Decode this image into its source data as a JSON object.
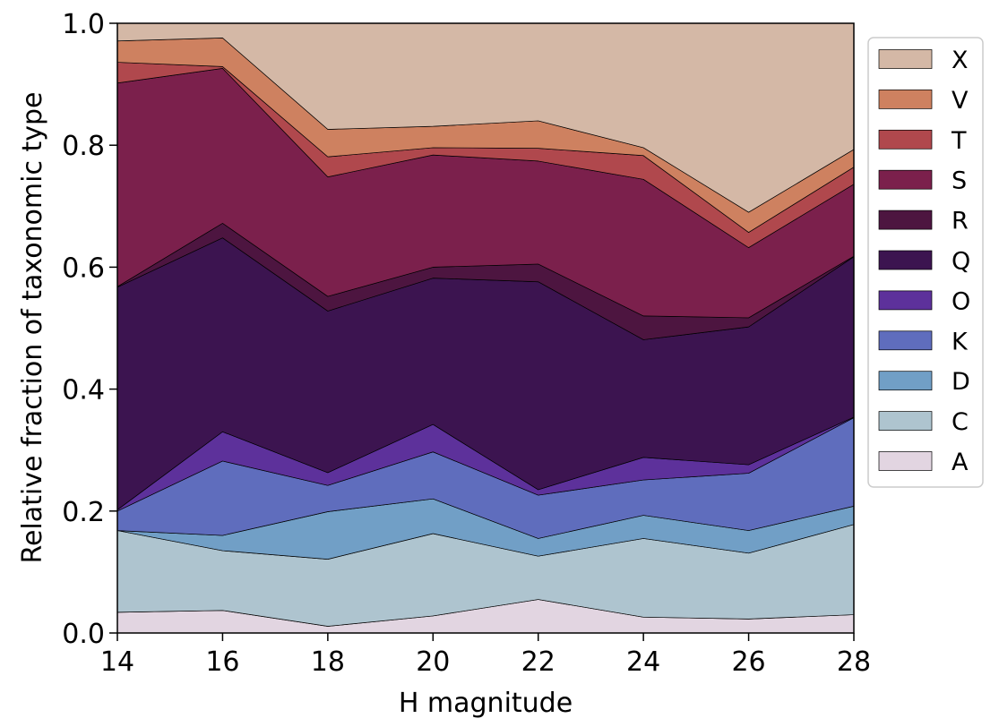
{
  "chart_data": {
    "type": "area",
    "stacked": true,
    "xlabel": "H magnitude",
    "ylabel": "Relative fraction of taxonomic type",
    "xlim": [
      14,
      28
    ],
    "ylim": [
      0,
      1
    ],
    "x": [
      14,
      16,
      18,
      20,
      22,
      24,
      26,
      28
    ],
    "xticks": [
      "14",
      "16",
      "18",
      "20",
      "22",
      "24",
      "26",
      "28"
    ],
    "yticks": [
      "0.0",
      "0.2",
      "0.4",
      "0.6",
      "0.8",
      "1.0"
    ],
    "legend_position": "right",
    "series": [
      {
        "name": "A",
        "color": "#e2d5e1",
        "values": [
          0.034,
          0.037,
          0.011,
          0.028,
          0.055,
          0.026,
          0.023,
          0.03
        ]
      },
      {
        "name": "C",
        "color": "#aec4cf",
        "values": [
          0.134,
          0.098,
          0.11,
          0.135,
          0.071,
          0.129,
          0.108,
          0.148
        ]
      },
      {
        "name": "D",
        "color": "#719fc6",
        "values": [
          0.0,
          0.025,
          0.078,
          0.057,
          0.029,
          0.038,
          0.037,
          0.03
        ]
      },
      {
        "name": "K",
        "color": "#5f6dbd",
        "values": [
          0.032,
          0.122,
          0.043,
          0.077,
          0.071,
          0.058,
          0.094,
          0.145
        ]
      },
      {
        "name": "O",
        "color": "#5d319b",
        "values": [
          0.002,
          0.048,
          0.021,
          0.045,
          0.009,
          0.037,
          0.014,
          0.001
        ]
      },
      {
        "name": "Q",
        "color": "#3c1450",
        "values": [
          0.365,
          0.318,
          0.265,
          0.24,
          0.341,
          0.193,
          0.226,
          0.263
        ]
      },
      {
        "name": "R",
        "color": "#4d1540",
        "values": [
          0.001,
          0.024,
          0.024,
          0.018,
          0.029,
          0.039,
          0.015,
          0.001
        ]
      },
      {
        "name": "S",
        "color": "#7b204c",
        "values": [
          0.334,
          0.254,
          0.196,
          0.184,
          0.169,
          0.224,
          0.115,
          0.118
        ]
      },
      {
        "name": "T",
        "color": "#b0484d",
        "values": [
          0.034,
          0.003,
          0.033,
          0.012,
          0.021,
          0.039,
          0.025,
          0.028
        ]
      },
      {
        "name": "V",
        "color": "#ce8160",
        "values": [
          0.035,
          0.047,
          0.045,
          0.035,
          0.045,
          0.013,
          0.033,
          0.029
        ]
      },
      {
        "name": "X",
        "color": "#d4b8a6",
        "values": [
          0.035,
          0.024,
          0.174,
          0.169,
          0.164,
          0.204,
          0.31,
          0.207
        ]
      }
    ],
    "legend_order": [
      "X",
      "V",
      "T",
      "S",
      "R",
      "Q",
      "O",
      "K",
      "D",
      "C",
      "A"
    ]
  }
}
